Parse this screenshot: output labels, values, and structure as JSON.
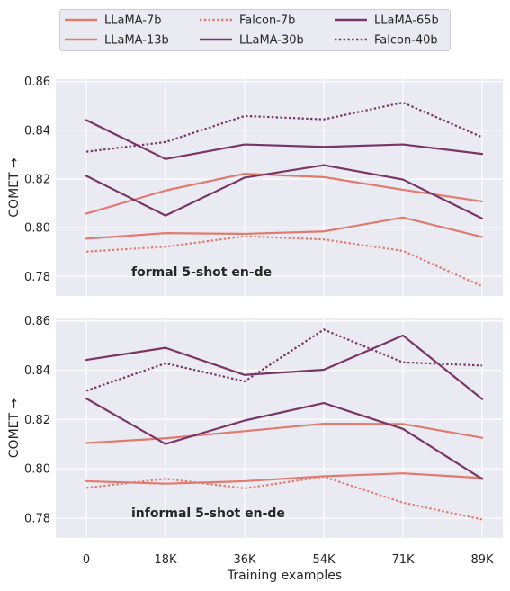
{
  "chart_data": {
    "type": "line",
    "x": [
      "0",
      "18K",
      "36K",
      "54K",
      "71K",
      "89K"
    ],
    "xlabel": "Training examples",
    "legend_position": "top",
    "grid": true,
    "legend": [
      {
        "name": "LLaMA-7b",
        "color": "#e07a6e",
        "style": "solid"
      },
      {
        "name": "LLaMA-13b",
        "color": "#e07a6e",
        "style": "solid"
      },
      {
        "name": "Falcon-7b",
        "color": "#e07a6e",
        "style": "dotted"
      },
      {
        "name": "LLaMA-30b",
        "color": "#7a3567",
        "style": "solid"
      },
      {
        "name": "LLaMA-65b",
        "color": "#7a3567",
        "style": "solid"
      },
      {
        "name": "Falcon-40b",
        "color": "#7a3567",
        "style": "dotted"
      }
    ],
    "panels": [
      {
        "annotation": "formal 5-shot en-de",
        "ylabel": "COMET →",
        "ylim": [
          0.772,
          0.861
        ],
        "yticks": [
          0.78,
          0.8,
          0.82,
          0.84,
          0.86
        ],
        "series": [
          {
            "name": "LLaMA-7b",
            "values": [
              0.7955,
              0.7978,
              0.7975,
              0.7985,
              0.8042,
              0.7962
            ]
          },
          {
            "name": "LLaMA-13b",
            "values": [
              0.8058,
              0.8153,
              0.8222,
              0.8208,
              0.8156,
              0.8108
            ]
          },
          {
            "name": "Falcon-7b",
            "values": [
              0.7902,
              0.7922,
              0.7965,
              0.7952,
              0.7905,
              0.776
            ]
          },
          {
            "name": "LLaMA-30b",
            "values": [
              0.8213,
              0.805,
              0.8206,
              0.8257,
              0.8198,
              0.8038
            ]
          },
          {
            "name": "LLaMA-65b",
            "values": [
              0.8442,
              0.8282,
              0.8342,
              0.8332,
              0.8342,
              0.8303
            ]
          },
          {
            "name": "Falcon-40b",
            "values": [
              0.8312,
              0.8352,
              0.8459,
              0.8445,
              0.8514,
              0.8372
            ]
          }
        ]
      },
      {
        "annotation": "informal 5-shot en-de",
        "ylabel": "COMET →",
        "ylim": [
          0.772,
          0.861
        ],
        "yticks": [
          0.78,
          0.8,
          0.82,
          0.84,
          0.86
        ],
        "series": [
          {
            "name": "LLaMA-7b",
            "values": [
              0.795,
              0.794,
              0.795,
              0.797,
              0.7982,
              0.7963
            ]
          },
          {
            "name": "LLaMA-13b",
            "values": [
              0.8105,
              0.8124,
              0.8153,
              0.8183,
              0.8182,
              0.8126
            ]
          },
          {
            "name": "Falcon-7b",
            "values": [
              0.7923,
              0.796,
              0.7921,
              0.7968,
              0.7863,
              0.7795
            ]
          },
          {
            "name": "LLaMA-30b",
            "values": [
              0.8285,
              0.8101,
              0.8196,
              0.8267,
              0.8162,
              0.7959
            ]
          },
          {
            "name": "LLaMA-65b",
            "values": [
              0.8442,
              0.8491,
              0.8381,
              0.8402,
              0.8541,
              0.8283
            ]
          },
          {
            "name": "Falcon-40b",
            "values": [
              0.8317,
              0.8428,
              0.8355,
              0.8565,
              0.8432,
              0.8419
            ]
          }
        ]
      }
    ]
  }
}
